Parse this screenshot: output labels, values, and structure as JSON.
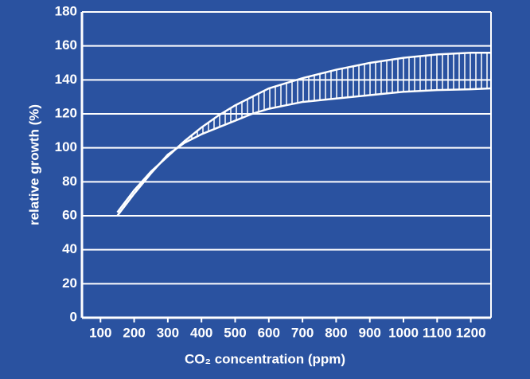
{
  "chart_data": {
    "type": "band",
    "x_label": "CO₂ concentration (ppm)",
    "y_label": "relative growth (%)",
    "x": [
      150,
      200,
      250,
      300,
      350,
      400,
      450,
      500,
      550,
      600,
      650,
      700,
      800,
      900,
      1000,
      1100,
      1200,
      1260
    ],
    "series": [
      {
        "color": "#ffffff",
        "values": [
          62,
          75,
          86,
          95,
          104,
          112,
          119,
          125,
          130,
          135,
          138,
          141,
          146,
          150,
          153,
          155,
          156,
          156
        ]
      },
      {
        "color": "#ffffff",
        "values": [
          60,
          73,
          85,
          96,
          103,
          108,
          112,
          116,
          120,
          123,
          125,
          127,
          129,
          131,
          133,
          134,
          134.5,
          135
        ]
      }
    ],
    "hatch": "vertical",
    "xlim": [
      45,
      1260
    ],
    "ylim": [
      0,
      180
    ],
    "xticks": [
      100,
      200,
      300,
      400,
      500,
      600,
      700,
      800,
      900,
      1000,
      1100,
      1200
    ],
    "yticks": [
      0,
      20,
      40,
      60,
      80,
      100,
      120,
      140,
      160,
      180
    ],
    "grid": true
  }
}
